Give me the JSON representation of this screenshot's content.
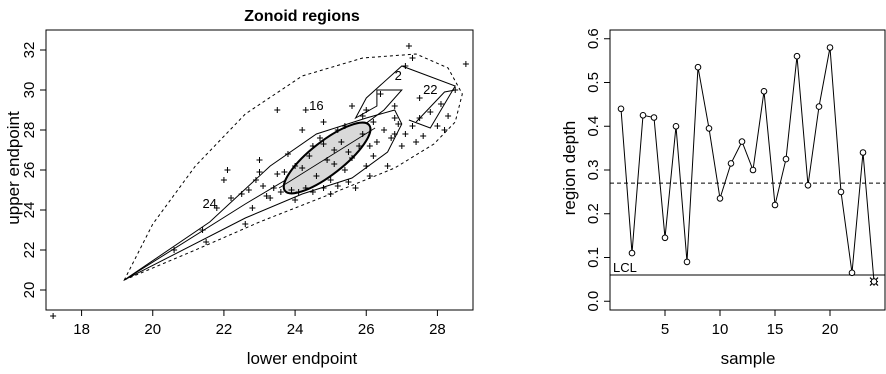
{
  "chart_data": [
    {
      "type": "scatter",
      "title": "Zonoid regions",
      "xlabel": "lower endpoint",
      "ylabel": "upper endpoint",
      "xlim": [
        17,
        29
      ],
      "ylim": [
        19,
        33
      ],
      "xticks": [
        "18",
        "20",
        "22",
        "24",
        "26",
        "28"
      ],
      "yticks": [
        "20",
        "22",
        "24",
        "26",
        "28",
        "30",
        "32"
      ],
      "points": [
        [
          17.2,
          18.7
        ],
        [
          20.6,
          22.0
        ],
        [
          21.4,
          23.0
        ],
        [
          21.5,
          22.4
        ],
        [
          21.8,
          24.1
        ],
        [
          22.0,
          25.5
        ],
        [
          22.1,
          26.0
        ],
        [
          22.2,
          24.6
        ],
        [
          22.5,
          24.8
        ],
        [
          22.6,
          23.3
        ],
        [
          22.7,
          25.0
        ],
        [
          22.9,
          25.5
        ],
        [
          23.0,
          26.5
        ],
        [
          23.1,
          25.2
        ],
        [
          23.2,
          24.7
        ],
        [
          23.3,
          24.6
        ],
        [
          23.4,
          25.1
        ],
        [
          23.5,
          29.0
        ],
        [
          23.5,
          25.8
        ],
        [
          23.7,
          25.9
        ],
        [
          23.8,
          26.8
        ],
        [
          23.9,
          25.0
        ],
        [
          24.0,
          24.5
        ],
        [
          24.1,
          24.9
        ],
        [
          24.2,
          28.0
        ],
        [
          24.2,
          26.1
        ],
        [
          24.3,
          29.0
        ],
        [
          24.3,
          25.1
        ],
        [
          24.4,
          26.7
        ],
        [
          24.5,
          27.2
        ],
        [
          24.5,
          24.9
        ],
        [
          24.6,
          25.7
        ],
        [
          24.7,
          27.6
        ],
        [
          24.8,
          25.1
        ],
        [
          24.8,
          28.4
        ],
        [
          24.9,
          26.5
        ],
        [
          25.0,
          25.5
        ],
        [
          25.0,
          24.8
        ],
        [
          25.1,
          27.0
        ],
        [
          25.1,
          26.3
        ],
        [
          25.2,
          25.2
        ],
        [
          25.3,
          27.4
        ],
        [
          25.4,
          28.2
        ],
        [
          25.4,
          26.0
        ],
        [
          25.5,
          25.4
        ],
        [
          25.6,
          29.2
        ],
        [
          25.6,
          26.6
        ],
        [
          25.7,
          25.1
        ],
        [
          25.8,
          27.2
        ],
        [
          25.9,
          27.8
        ],
        [
          26.0,
          29.0
        ],
        [
          26.0,
          26.2
        ],
        [
          26.1,
          25.7
        ],
        [
          26.2,
          28.4
        ],
        [
          26.2,
          26.7
        ],
        [
          26.3,
          27.4
        ],
        [
          26.4,
          29.8
        ],
        [
          26.5,
          28.0
        ],
        [
          26.6,
          26.2
        ],
        [
          26.7,
          27.6
        ],
        [
          26.8,
          28.6
        ],
        [
          26.8,
          27.8
        ],
        [
          26.9,
          28.3
        ],
        [
          27.0,
          27.2
        ],
        [
          27.1,
          27.8
        ],
        [
          27.1,
          31.2
        ],
        [
          27.2,
          32.2
        ],
        [
          27.3,
          31.6
        ],
        [
          27.3,
          28.2
        ],
        [
          27.4,
          27.4
        ],
        [
          27.5,
          28.6
        ],
        [
          27.6,
          27.7
        ],
        [
          27.8,
          28.9
        ],
        [
          28.0,
          28.2
        ],
        [
          28.1,
          29.3
        ],
        [
          28.2,
          28.0
        ],
        [
          28.3,
          28.7
        ],
        [
          28.5,
          30.0
        ],
        [
          28.8,
          31.3
        ],
        [
          23.0,
          25.9
        ],
        [
          24.0,
          26.2
        ],
        [
          24.8,
          27.3
        ],
        [
          25.2,
          28.0
        ],
        [
          25.9,
          28.7
        ],
        [
          26.8,
          29.2
        ],
        [
          27.5,
          29.6
        ],
        [
          22.8,
          24.1
        ],
        [
          23.6,
          24.9
        ],
        [
          25.5,
          26.9
        ],
        [
          26.1,
          27.2
        ]
      ],
      "labels": [
        {
          "text": "2",
          "x": 26.9,
          "y": 30.5
        },
        {
          "text": "22",
          "x": 27.8,
          "y": 29.8
        },
        {
          "text": "16",
          "x": 24.6,
          "y": 29.0
        },
        {
          "text": "24",
          "x": 21.6,
          "y": 24.1
        }
      ],
      "ellipse": {
        "cx": 24.9,
        "cy": 26.6,
        "rx": 1.5,
        "ry": 0.85,
        "angle_deg": 38
      },
      "outer_region": [
        [
          19.2,
          20.5
        ],
        [
          21.2,
          22.0
        ],
        [
          23.0,
          23.4
        ],
        [
          25.0,
          24.8
        ],
        [
          26.8,
          26.1
        ],
        [
          27.9,
          27.3
        ],
        [
          28.5,
          28.4
        ],
        [
          28.7,
          29.8
        ],
        [
          28.3,
          31.1
        ],
        [
          27.4,
          31.8
        ],
        [
          25.9,
          31.6
        ],
        [
          24.2,
          30.7
        ],
        [
          22.6,
          28.8
        ],
        [
          21.2,
          26.2
        ],
        [
          20.0,
          23.3
        ],
        [
          19.2,
          20.5
        ]
      ],
      "middle_region": [
        [
          19.2,
          20.5
        ],
        [
          22.6,
          23.6
        ],
        [
          24.2,
          24.8
        ],
        [
          25.6,
          25.6
        ],
        [
          26.6,
          26.9
        ],
        [
          27.0,
          28.3
        ],
        [
          26.8,
          29.0
        ],
        [
          26.0,
          28.6
        ],
        [
          24.6,
          27.8
        ],
        [
          23.3,
          26.2
        ],
        [
          21.6,
          23.4
        ],
        [
          19.2,
          20.5
        ]
      ],
      "paths": [
        [
          [
            19.2,
            20.5
          ],
          [
            22.6,
            24.3
          ],
          [
            24.3,
            26.1
          ],
          [
            26.5,
            29.0
          ],
          [
            27.0,
            30.0
          ],
          [
            26.3,
            30.0
          ],
          [
            26.3,
            29.2
          ],
          [
            25.7,
            28.6
          ],
          [
            26.0,
            29.6
          ],
          [
            27.0,
            31.2
          ],
          [
            28.5,
            30.2
          ],
          [
            27.8,
            28.1
          ],
          [
            27.2,
            28.5
          ]
        ],
        [
          [
            27.4,
            28.4
          ],
          [
            28.2,
            29.9
          ],
          [
            28.5,
            30.0
          ]
        ]
      ]
    },
    {
      "type": "line",
      "xlabel": "sample",
      "ylabel": "region depth",
      "xlim": [
        0,
        25
      ],
      "ylim": [
        -0.02,
        0.62
      ],
      "xticks": [
        "5",
        "10",
        "15",
        "20"
      ],
      "yticks": [
        "0.0",
        "0.1",
        "0.2",
        "0.3",
        "0.4",
        "0.5",
        "0.6"
      ],
      "x": [
        1,
        2,
        3,
        4,
        5,
        6,
        7,
        8,
        9,
        10,
        11,
        12,
        13,
        14,
        15,
        16,
        17,
        18,
        19,
        20,
        21,
        22,
        23,
        24
      ],
      "values": [
        0.44,
        0.11,
        0.425,
        0.42,
        0.145,
        0.4,
        0.09,
        0.535,
        0.395,
        0.235,
        0.315,
        0.365,
        0.3,
        0.48,
        0.22,
        0.325,
        0.56,
        0.265,
        0.445,
        0.58,
        0.25,
        0.065,
        0.34,
        0.045
      ],
      "dashed_line": 0.27,
      "lcl": 0.06,
      "lcl_label": "LCL",
      "flagged_index": 23
    }
  ]
}
